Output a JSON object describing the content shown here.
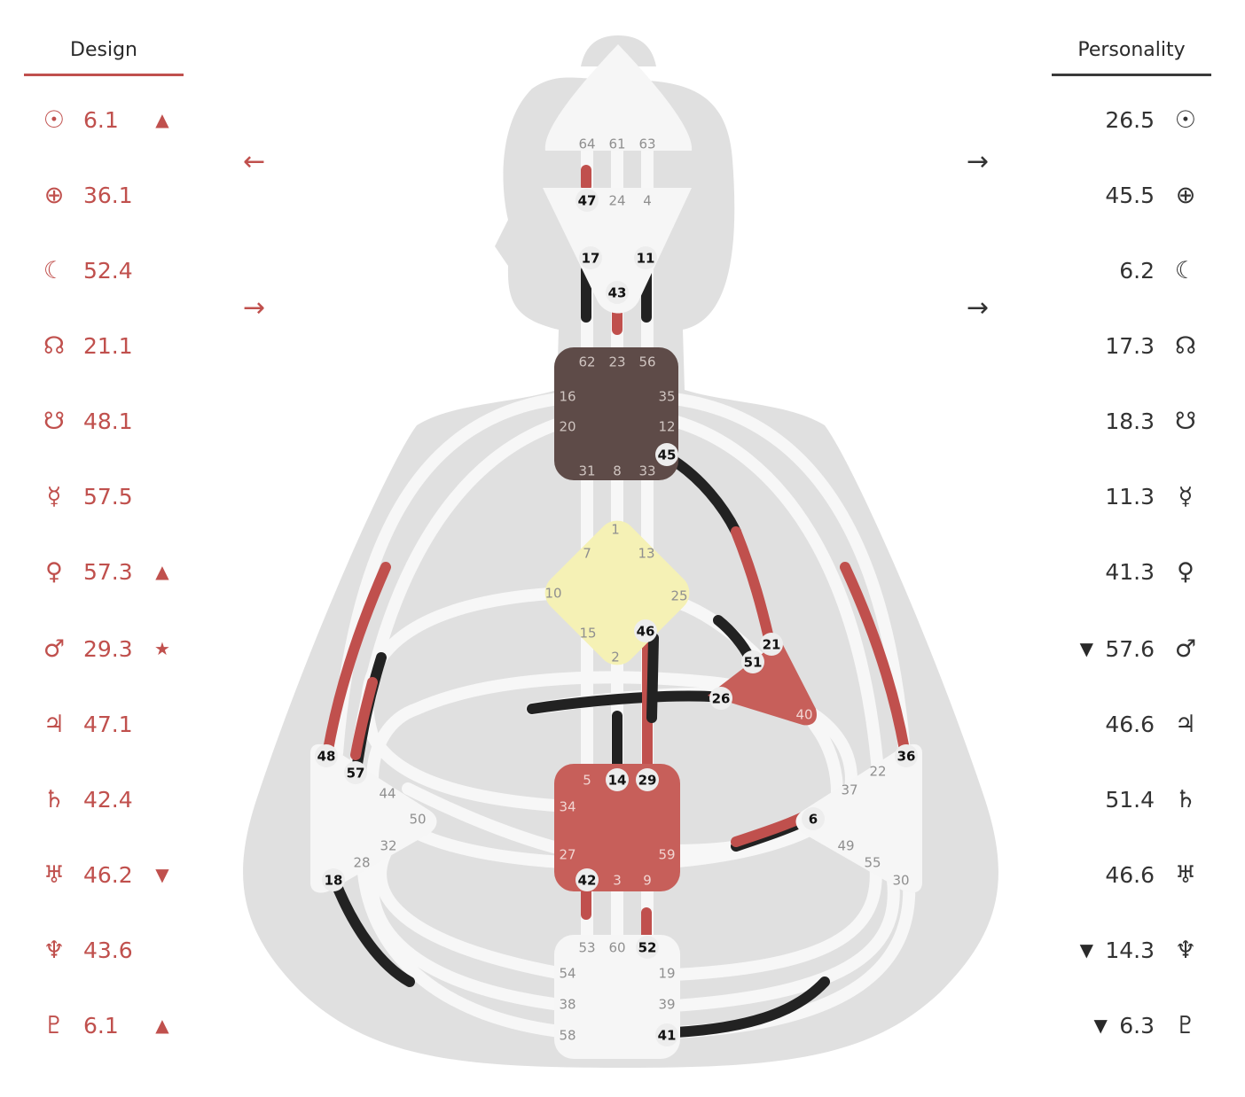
{
  "design": {
    "title": "Design",
    "color": "#c0504d",
    "rows": [
      {
        "planet": "Sun",
        "symbol": "☉",
        "value": "6.1",
        "mark": "▲"
      },
      {
        "planet": "Earth",
        "symbol": "⊕",
        "value": "36.1",
        "mark": ""
      },
      {
        "planet": "Moon",
        "symbol": "☾",
        "value": "52.4",
        "mark": ""
      },
      {
        "planet": "North Node",
        "symbol": "☊",
        "value": "21.1",
        "mark": ""
      },
      {
        "planet": "South Node",
        "symbol": "☋",
        "value": "48.1",
        "mark": ""
      },
      {
        "planet": "Mercury",
        "symbol": "☿",
        "value": "57.5",
        "mark": ""
      },
      {
        "planet": "Venus",
        "symbol": "♀",
        "value": "57.3",
        "mark": "▲"
      },
      {
        "planet": "Mars",
        "symbol": "♂",
        "value": "29.3",
        "mark": "★"
      },
      {
        "planet": "Jupiter",
        "symbol": "♃",
        "value": "47.1",
        "mark": ""
      },
      {
        "planet": "Saturn",
        "symbol": "♄",
        "value": "42.4",
        "mark": ""
      },
      {
        "planet": "Uranus",
        "symbol": "♅",
        "value": "46.2",
        "mark": "▼"
      },
      {
        "planet": "Neptune",
        "symbol": "♆",
        "value": "43.6",
        "mark": ""
      },
      {
        "planet": "Pluto",
        "symbol": "♇",
        "value": "6.1",
        "mark": "▲"
      }
    ]
  },
  "personality": {
    "title": "Personality",
    "color": "#333333",
    "rows": [
      {
        "planet": "Sun",
        "symbol": "☉",
        "value": "26.5",
        "mark": ""
      },
      {
        "planet": "Earth",
        "symbol": "⊕",
        "value": "45.5",
        "mark": ""
      },
      {
        "planet": "Moon",
        "symbol": "☾",
        "value": "6.2",
        "mark": ""
      },
      {
        "planet": "North Node",
        "symbol": "☊",
        "value": "17.3",
        "mark": ""
      },
      {
        "planet": "South Node",
        "symbol": "☋",
        "value": "18.3",
        "mark": ""
      },
      {
        "planet": "Mercury",
        "symbol": "☿",
        "value": "11.3",
        "mark": ""
      },
      {
        "planet": "Venus",
        "symbol": "♀",
        "value": "41.3",
        "mark": ""
      },
      {
        "planet": "Mars",
        "symbol": "♂",
        "value": "57.6",
        "mark": "▼"
      },
      {
        "planet": "Jupiter",
        "symbol": "♃",
        "value": "46.6",
        "mark": ""
      },
      {
        "planet": "Saturn",
        "symbol": "♄",
        "value": "51.4",
        "mark": ""
      },
      {
        "planet": "Uranus",
        "symbol": "♅",
        "value": "46.6",
        "mark": ""
      },
      {
        "planet": "Neptune",
        "symbol": "♆",
        "value": "14.3",
        "mark": "▼"
      },
      {
        "planet": "Pluto",
        "symbol": "♇",
        "value": "6.3",
        "mark": "▼"
      }
    ]
  },
  "arrows": {
    "design_top": "←",
    "design_bottom": "→",
    "personality_top": "→",
    "personality_bottom": "→"
  },
  "bodygraph": {
    "colors": {
      "silhouette": "#e0e0e0",
      "channel_base": "#f7f7f7",
      "design": "#c0504d",
      "personality": "#222222",
      "head": "#f6f6f6",
      "ajna": "#f6f6f6",
      "throat": "#5e4b48",
      "g_center": "#f5f1b5",
      "heart": "#c75f5a",
      "sacral": "#c75f5a",
      "spleen": "#f6f6f6",
      "solar_plexus": "#f6f6f6",
      "root": "#f6f6f6",
      "active_gate_bg": "#ededed"
    },
    "centers": {
      "head": [
        "64",
        "61",
        "63"
      ],
      "ajna": [
        "47",
        "24",
        "4",
        "17",
        "11",
        "43"
      ],
      "throat": [
        "62",
        "23",
        "56",
        "16",
        "35",
        "20",
        "12",
        "45",
        "31",
        "8",
        "33"
      ],
      "g": [
        "1",
        "7",
        "13",
        "10",
        "25",
        "15",
        "46",
        "2"
      ],
      "heart": [
        "21",
        "51",
        "26",
        "40"
      ],
      "sacral": [
        "5",
        "14",
        "29",
        "34",
        "27",
        "59",
        "42",
        "3",
        "9"
      ],
      "spleen": [
        "48",
        "57",
        "44",
        "50",
        "32",
        "28",
        "18"
      ],
      "solar_plexus": [
        "36",
        "22",
        "37",
        "6",
        "49",
        "55",
        "30"
      ],
      "root": [
        "53",
        "60",
        "52",
        "54",
        "19",
        "38",
        "39",
        "58",
        "41"
      ]
    },
    "active_gates": [
      "47",
      "17",
      "11",
      "43",
      "45",
      "46",
      "21",
      "51",
      "26",
      "48",
      "57",
      "36",
      "6",
      "14",
      "29",
      "18",
      "42",
      "52",
      "41"
    ]
  }
}
